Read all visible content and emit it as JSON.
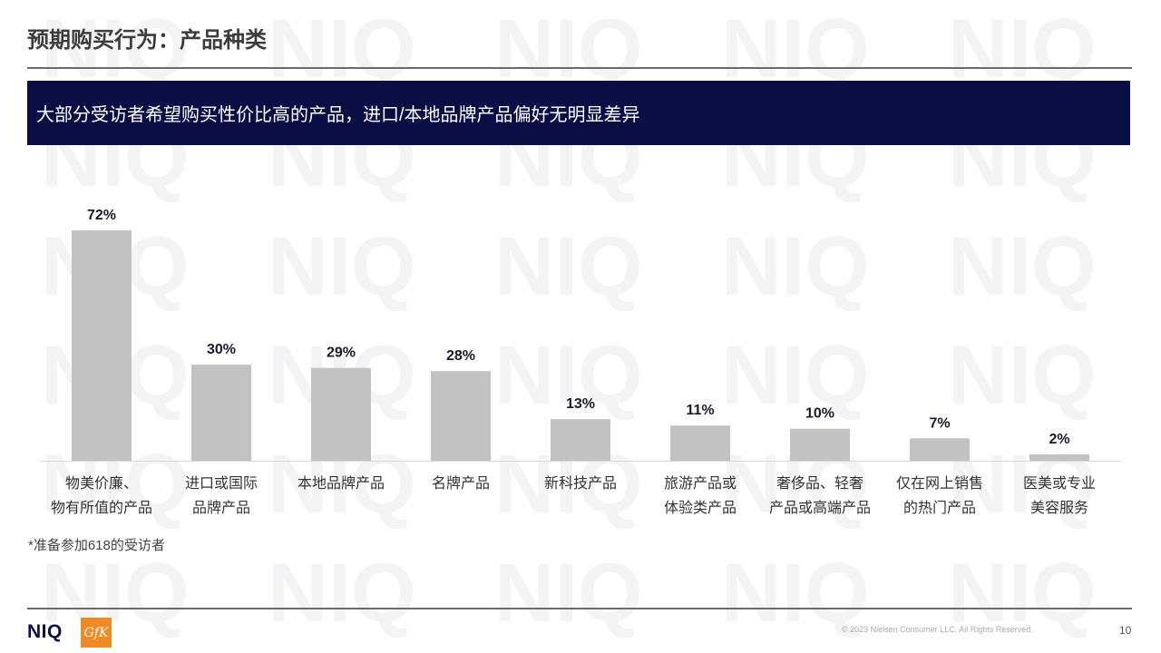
{
  "page": {
    "title": "预期购买行为：产品种类",
    "banner": "大部分受访者希望购买性价比高的产品，进口/本地品牌产品偏好无明显差异",
    "footnote": "*准备参加618的受访者",
    "copyright": "© 2023 Nielsen Consumer LLC. All Rights Reserved.",
    "page_number": "10",
    "logo_primary": "NIQ",
    "logo_secondary": "GfK",
    "watermark_text": "NIQ"
  },
  "colors": {
    "bar": "#c2c2c2",
    "banner_bg": "#0b0d45",
    "value_label": "#1a1a2e",
    "gfk_orange": "#f08a24"
  },
  "chart_data": {
    "type": "bar",
    "categories": [
      [
        "物美价廉、",
        "物有所值的产品"
      ],
      [
        "进口或国际",
        "品牌产品"
      ],
      [
        "本地品牌产品"
      ],
      [
        "名牌产品"
      ],
      [
        "新科技产品"
      ],
      [
        "旅游产品或",
        "体验类产品"
      ],
      [
        "奢侈品、轻奢",
        "产品或高端产品"
      ],
      [
        "仅在网上销售",
        "的热门产品"
      ],
      [
        "医美或专业",
        "美容服务"
      ]
    ],
    "values": [
      72,
      30,
      29,
      28,
      13,
      11,
      10,
      7,
      2
    ],
    "value_labels": [
      "72%",
      "30%",
      "29%",
      "28%",
      "13%",
      "11%",
      "10%",
      "7%",
      "2%"
    ],
    "title": "",
    "xlabel": "",
    "ylabel": "",
    "ylim": [
      0,
      72
    ],
    "grid": false,
    "legend": "none"
  }
}
